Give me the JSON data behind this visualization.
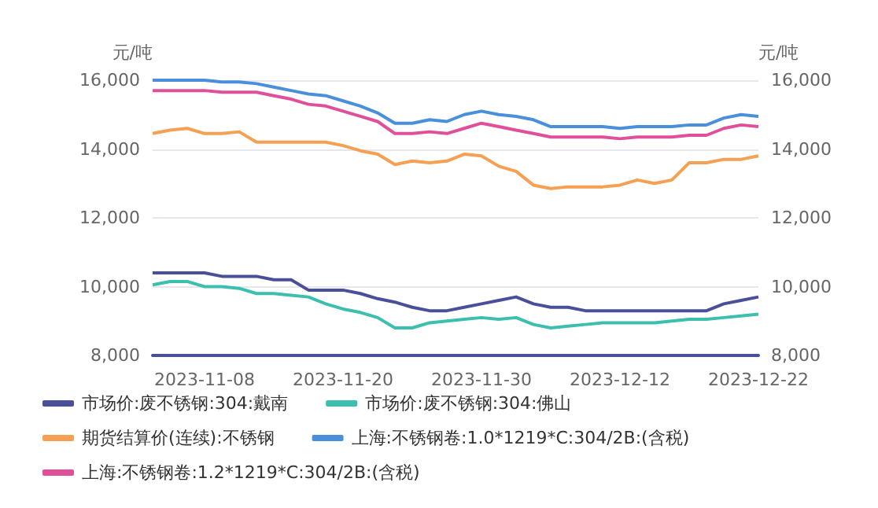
{
  "chart_data": {
    "type": "line",
    "categories": [
      null,
      null,
      null,
      "2023-11-08",
      null,
      null,
      null,
      null,
      null,
      null,
      null,
      "2023-11-20",
      null,
      null,
      null,
      null,
      null,
      null,
      null,
      "2023-11-30",
      null,
      null,
      null,
      null,
      null,
      null,
      null,
      "2023-12-12",
      null,
      null,
      null,
      null,
      null,
      null,
      null,
      "2023-12-22"
    ],
    "ylabel": "元/吨",
    "y2label": "元/吨",
    "ylim": [
      8000,
      16000
    ],
    "yticks": [
      {
        "value": 8000,
        "label": "8,000"
      },
      {
        "value": 10000,
        "label": "10,000"
      },
      {
        "value": 12000,
        "label": "12,000"
      },
      {
        "value": 14000,
        "label": "14,000"
      },
      {
        "value": 16000,
        "label": "16,000"
      }
    ],
    "y2lim": [
      8000,
      16000
    ],
    "y2ticks": [
      {
        "value": 8000,
        "label": "8,000"
      },
      {
        "value": 10000,
        "label": "10,000"
      },
      {
        "value": 12000,
        "label": "12,000"
      },
      {
        "value": 14000,
        "label": "14,000"
      },
      {
        "value": 16000,
        "label": "16,000"
      }
    ],
    "grid": "y",
    "legend": "bottom",
    "marker": "none",
    "line_style": "solid",
    "series": [
      {
        "name": "市场价:废不锈钢:304:戴南",
        "color": "#4a4f9a",
        "values": [
          10400,
          10400,
          10400,
          10400,
          10300,
          10300,
          10300,
          10200,
          10200,
          9900,
          9900,
          9900,
          9800,
          9650,
          9550,
          9400,
          9300,
          9300,
          9400,
          9500,
          9600,
          9700,
          9500,
          9400,
          9400,
          9300,
          9300,
          9300,
          9300,
          9300,
          9300,
          9300,
          9300,
          9500,
          9600,
          9700
        ]
      },
      {
        "name": "市场价:废不锈钢:304:佛山",
        "color": "#3cbfae",
        "values": [
          10050,
          10150,
          10150,
          10000,
          10000,
          9950,
          9800,
          9800,
          9750,
          9700,
          9500,
          9350,
          9250,
          9100,
          8800,
          8800,
          8950,
          9000,
          9050,
          9100,
          9050,
          9100,
          8900,
          8800,
          8850,
          8900,
          8950,
          8950,
          8950,
          8950,
          9000,
          9050,
          9050,
          9100,
          9150,
          9200
        ]
      },
      {
        "name": "期货结算价(连续):不锈钢",
        "color": "#f5a052",
        "values": [
          14450,
          14550,
          14600,
          14450,
          14450,
          14500,
          14200,
          14200,
          14200,
          14200,
          14200,
          14100,
          13950,
          13850,
          13550,
          13650,
          13600,
          13650,
          13850,
          13800,
          13500,
          13350,
          12950,
          12850,
          12900,
          12900,
          12900,
          12950,
          13100,
          13000,
          13100,
          13600,
          13600,
          13700,
          13700,
          13800
        ]
      },
      {
        "name": "上海:不锈钢卷:1.0*1219*C:304/2B:(含税)",
        "color": "#4a8fdc",
        "values": [
          16000,
          16000,
          16000,
          16000,
          15950,
          15950,
          15900,
          15800,
          15700,
          15600,
          15550,
          15400,
          15250,
          15050,
          14750,
          14750,
          14850,
          14800,
          15000,
          15100,
          15000,
          14950,
          14850,
          14650,
          14650,
          14650,
          14650,
          14600,
          14650,
          14650,
          14650,
          14700,
          14700,
          14900,
          15000,
          14950
        ]
      },
      {
        "name": "上海:不锈钢卷:1.2*1219*C:304/2B:(含税)",
        "color": "#e0509a",
        "values": [
          15700,
          15700,
          15700,
          15700,
          15650,
          15650,
          15650,
          15550,
          15450,
          15300,
          15250,
          15100,
          14950,
          14800,
          14450,
          14450,
          14500,
          14450,
          14600,
          14750,
          14650,
          14550,
          14450,
          14350,
          14350,
          14350,
          14350,
          14300,
          14350,
          14350,
          14350,
          14400,
          14400,
          14600,
          14700,
          14650
        ]
      }
    ]
  }
}
